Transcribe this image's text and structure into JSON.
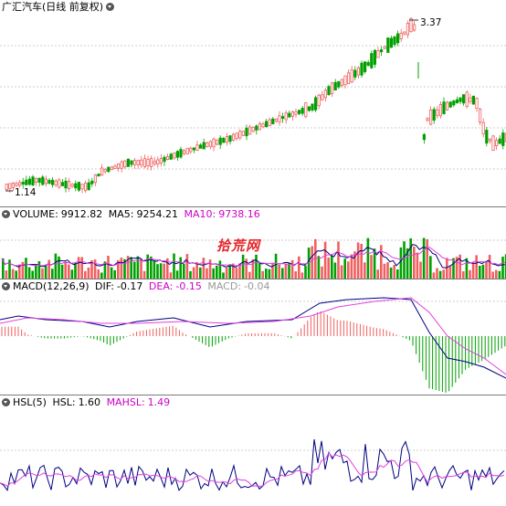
{
  "title_panel": {
    "stock_title": "广汇汽车(日线 前复权)",
    "high_label": "3.37",
    "low_label": "1.14"
  },
  "volume_panel": {
    "name": "VOLUME:",
    "value": "9912.82",
    "ma5_label": "MA5:",
    "ma5_value": "9254.21",
    "ma10_label": "MA10:",
    "ma10_value": "9738.16"
  },
  "macd_panel": {
    "name": "MACD(12,26,9)",
    "dif_label": "DIF:",
    "dif_value": "-0.17",
    "dea_label": "DEA:",
    "dea_value": "-0.15",
    "macd_label": "MACD:",
    "macd_value": "-0.04"
  },
  "hsl_panel": {
    "name": "HSL(5)",
    "hsl_label": "HSL:",
    "hsl_value": "1.60",
    "mahsl_label": "MAHSL:",
    "mahsl_value": "1.49"
  },
  "watermark": "拾荒网",
  "colors": {
    "up": "#f06060",
    "down": "#00a000",
    "line_dark": "#000080",
    "line_magenta": "#e040e0",
    "grid": "#9a9a9a"
  },
  "chart_data": {
    "type": "candlestick",
    "price_markers": {
      "high": 3.37,
      "low": 1.14
    },
    "indicators": {
      "volume": {
        "current": 9912.82,
        "ma5": 9254.21,
        "ma10": 9738.16
      },
      "macd": {
        "dif": -0.17,
        "dea": -0.15,
        "macd": -0.04
      },
      "hsl": {
        "hsl": 1.6,
        "mahsl": 1.49
      }
    }
  }
}
